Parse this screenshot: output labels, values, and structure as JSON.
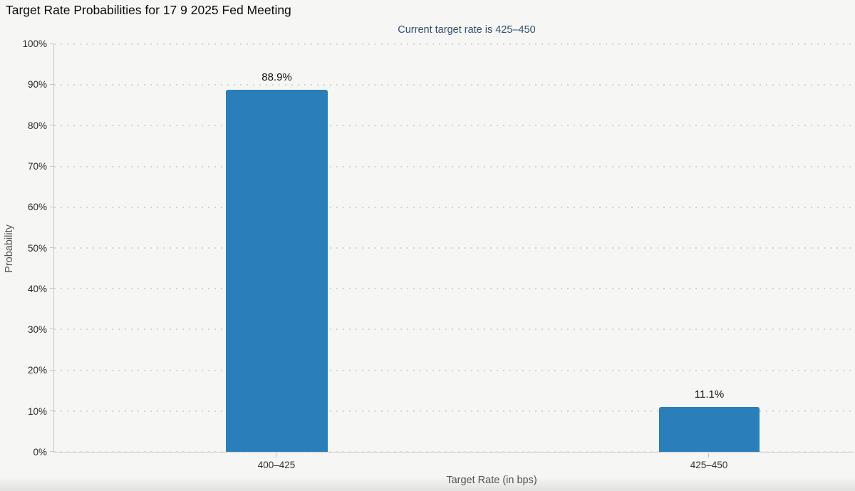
{
  "chart_data": {
    "type": "bar",
    "title": "Target Rate Probabilities for 17 9 2025 Fed Meeting",
    "subtitle": "Current target rate is 425–450",
    "categories": [
      "400–425",
      "425–450"
    ],
    "values": [
      88.9,
      11.1
    ],
    "value_labels": [
      "88.9%",
      "11.1%"
    ],
    "xlabel": "Target Rate (in bps)",
    "ylabel": "Probability",
    "ylim": [
      0,
      100
    ],
    "ytick_step": 10,
    "ytick_labels": [
      "0%",
      "10%",
      "20%",
      "30%",
      "40%",
      "50%",
      "60%",
      "70%",
      "80%",
      "90%",
      "100%"
    ],
    "grid": "horizontal-dotted",
    "legend": "none",
    "bar_color": "#2a7eba"
  },
  "colors": {
    "background": "#f6f6f5",
    "bar": "#2a7eba",
    "subtitle_text": "#34506c",
    "grid_dot": "#d4d4d2",
    "axis_line": "#c9c9c8",
    "tick_label_text": "#2b2b2b",
    "axis_title_text": "#555555",
    "title_text": "#0c0c0c"
  }
}
